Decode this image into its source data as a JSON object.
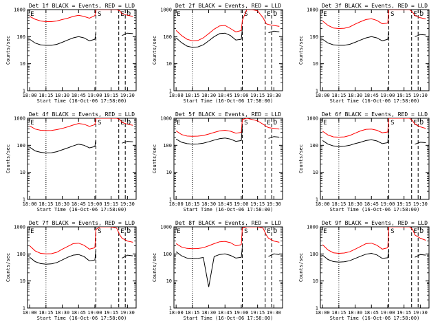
{
  "figure": {
    "y_scale": "log",
    "ylim": [
      1,
      1000
    ],
    "x_tick_labels": [
      "18:00",
      "18:15",
      "18:30",
      "18:45",
      "19:00",
      "19:15",
      "19:30"
    ],
    "y_tick_labels": [
      "1",
      "10",
      "100",
      "1000"
    ],
    "xlabel": "Start Time (16-Oct-06 17:58:00)",
    "ylabel": "Counts/sec",
    "dotted_line_at": "18:15",
    "dashed_lines_at": [
      "19:01",
      "19:22",
      "19:28"
    ],
    "markers": [
      {
        "text": "E",
        "at": "18:00"
      },
      {
        "text": "S",
        "at": "19:02"
      },
      {
        "text": "E",
        "at": "19:23"
      },
      {
        "text": "D",
        "at": "19:29"
      }
    ],
    "colors": {
      "events": "#000000",
      "lld": "#ff0000",
      "axes": "#000000"
    }
  },
  "chart_data": [
    {
      "type": "line",
      "title": "Det 1f BLACK = Events, RED = LLD",
      "x": [
        "18:00",
        "18:05",
        "18:10",
        "18:15",
        "18:20",
        "18:25",
        "18:30",
        "18:35",
        "18:40",
        "18:45",
        "18:50",
        "18:55",
        "19:00",
        "19:01",
        "19:05",
        "19:10",
        "19:15",
        "19:20",
        "19:23",
        "19:25",
        "19:30",
        "19:35"
      ],
      "series": [
        {
          "name": "LLD",
          "color": "#ff0000",
          "values": [
            560,
            440,
            380,
            360,
            360,
            380,
            430,
            480,
            560,
            620,
            560,
            480,
            600,
            1000,
            1000,
            1000,
            1000,
            1000,
            900,
            700,
            620,
            560
          ]
        },
        {
          "name": "Events",
          "color": "#000000",
          "values": [
            80,
            58,
            50,
            48,
            48,
            52,
            62,
            75,
            90,
            100,
            90,
            70,
            80,
            140,
            null,
            null,
            null,
            null,
            null,
            110,
            135,
            130
          ]
        }
      ]
    },
    {
      "type": "line",
      "title": "Det 2f BLACK = Events, RED = LLD",
      "x": [
        "18:00",
        "18:05",
        "18:10",
        "18:15",
        "18:20",
        "18:25",
        "18:30",
        "18:35",
        "18:40",
        "18:45",
        "18:50",
        "18:55",
        "19:00",
        "19:01",
        "19:05",
        "19:10",
        "19:15",
        "19:20",
        "19:23",
        "19:25",
        "19:30",
        "19:35"
      ],
      "series": [
        {
          "name": "LLD",
          "color": "#ff0000",
          "values": [
            170,
            110,
            80,
            70,
            72,
            90,
            130,
            190,
            250,
            260,
            200,
            150,
            170,
            400,
            1000,
            1000,
            900,
            500,
            300,
            280,
            260,
            240
          ]
        },
        {
          "name": "Events",
          "color": "#000000",
          "values": [
            90,
            60,
            45,
            40,
            42,
            50,
            70,
            100,
            130,
            135,
            110,
            75,
            80,
            200,
            null,
            null,
            null,
            null,
            null,
            140,
            160,
            150
          ]
        }
      ]
    },
    {
      "type": "line",
      "title": "Det 3f BLACK = Events, RED = LLD",
      "x": [
        "18:00",
        "18:05",
        "18:10",
        "18:15",
        "18:20",
        "18:25",
        "18:30",
        "18:35",
        "18:40",
        "18:45",
        "18:50",
        "18:55",
        "19:00",
        "19:01",
        "19:05",
        "19:10",
        "19:15",
        "19:20",
        "19:23",
        "19:25",
        "19:30",
        "19:35"
      ],
      "series": [
        {
          "name": "LLD",
          "color": "#ff0000",
          "values": [
            380,
            260,
            210,
            200,
            205,
            230,
            290,
            360,
            430,
            460,
            400,
            300,
            320,
            1000,
            1000,
            1000,
            1000,
            1000,
            800,
            600,
            500,
            450
          ]
        },
        {
          "name": "Events",
          "color": "#000000",
          "values": [
            80,
            58,
            50,
            48,
            48,
            52,
            62,
            75,
            90,
            100,
            90,
            70,
            80,
            160,
            null,
            null,
            null,
            null,
            null,
            100,
            120,
            115
          ]
        }
      ]
    },
    {
      "type": "line",
      "title": "Det 4f BLACK = Events, RED = LLD",
      "x": [
        "18:00",
        "18:05",
        "18:10",
        "18:15",
        "18:20",
        "18:25",
        "18:30",
        "18:35",
        "18:40",
        "18:45",
        "18:50",
        "18:55",
        "19:00",
        "19:01",
        "19:05",
        "19:10",
        "19:15",
        "19:20",
        "19:23",
        "19:25",
        "19:30",
        "19:35"
      ],
      "series": [
        {
          "name": "LLD",
          "color": "#ff0000",
          "values": [
            520,
            400,
            360,
            350,
            355,
            380,
            420,
            480,
            560,
            640,
            600,
            500,
            580,
            1000,
            1000,
            1000,
            1000,
            1000,
            900,
            700,
            600,
            550
          ]
        },
        {
          "name": "Events",
          "color": "#000000",
          "values": [
            85,
            62,
            55,
            52,
            53,
            58,
            68,
            80,
            95,
            110,
            100,
            80,
            90,
            160,
            null,
            null,
            null,
            null,
            null,
            120,
            140,
            135
          ]
        }
      ]
    },
    {
      "type": "line",
      "title": "Det 5f BLACK = Events, RED = LLD",
      "x": [
        "18:00",
        "18:05",
        "18:10",
        "18:15",
        "18:20",
        "18:25",
        "18:30",
        "18:35",
        "18:40",
        "18:45",
        "18:50",
        "18:55",
        "19:00",
        "19:01",
        "19:05",
        "19:10",
        "19:15",
        "19:20",
        "19:23",
        "19:25",
        "19:30",
        "19:35"
      ],
      "series": [
        {
          "name": "LLD",
          "color": "#ff0000",
          "values": [
            340,
            250,
            220,
            215,
            218,
            230,
            260,
            300,
            340,
            360,
            330,
            280,
            300,
            900,
            1000,
            900,
            800,
            600,
            500,
            450,
            420,
            400
          ]
        },
        {
          "name": "Events",
          "color": "#000000",
          "values": [
            170,
            130,
            115,
            110,
            112,
            120,
            135,
            155,
            175,
            185,
            170,
            140,
            150,
            500,
            null,
            null,
            null,
            null,
            null,
            180,
            210,
            200
          ]
        }
      ]
    },
    {
      "type": "line",
      "title": "Det 6f BLACK = Events, RED = LLD",
      "x": [
        "18:00",
        "18:05",
        "18:10",
        "18:15",
        "18:20",
        "18:25",
        "18:30",
        "18:35",
        "18:40",
        "18:45",
        "18:50",
        "18:55",
        "19:00",
        "19:01",
        "19:05",
        "19:10",
        "19:15",
        "19:20",
        "19:23",
        "19:25",
        "19:30",
        "19:35"
      ],
      "series": [
        {
          "name": "LLD",
          "color": "#ff0000",
          "values": [
            330,
            240,
            205,
            200,
            205,
            230,
            280,
            340,
            390,
            400,
            360,
            290,
            310,
            1000,
            1000,
            1000,
            1000,
            1000,
            800,
            600,
            480,
            420
          ]
        },
        {
          "name": "Events",
          "color": "#000000",
          "values": [
            150,
            110,
            95,
            90,
            92,
            100,
            115,
            130,
            150,
            160,
            145,
            115,
            125,
            400,
            null,
            null,
            null,
            null,
            null,
            110,
            130,
            125
          ]
        }
      ]
    },
    {
      "type": "line",
      "title": "Det 7f BLACK = Events, RED = LLD",
      "x": [
        "18:00",
        "18:05",
        "18:10",
        "18:15",
        "18:20",
        "18:25",
        "18:30",
        "18:35",
        "18:40",
        "18:45",
        "18:50",
        "18:55",
        "19:00",
        "19:01",
        "19:05",
        "19:10",
        "19:15",
        "19:20",
        "19:23",
        "19:25",
        "19:30",
        "19:35"
      ],
      "series": [
        {
          "name": "LLD",
          "color": "#ff0000",
          "values": [
            200,
            130,
            105,
            100,
            102,
            115,
            150,
            190,
            240,
            250,
            210,
            150,
            170,
            800,
            1000,
            1000,
            1000,
            900,
            500,
            380,
            300,
            270
          ]
        },
        {
          "name": "Events",
          "color": "#000000",
          "values": [
            75,
            52,
            44,
            42,
            43,
            48,
            60,
            75,
            90,
            95,
            80,
            55,
            60,
            140,
            null,
            null,
            null,
            null,
            null,
            70,
            90,
            85
          ]
        }
      ]
    },
    {
      "type": "line",
      "title": "Det 8f BLACK = Events, RED = LLD",
      "x": [
        "18:00",
        "18:05",
        "18:10",
        "18:15",
        "18:20",
        "18:25",
        "18:30",
        "18:35",
        "18:40",
        "18:45",
        "18:50",
        "18:55",
        "19:00",
        "19:01",
        "19:05",
        "19:10",
        "19:15",
        "19:20",
        "19:23",
        "19:25",
        "19:30",
        "19:35"
      ],
      "series": [
        {
          "name": "LLD",
          "color": "#ff0000",
          "values": [
            240,
            180,
            160,
            155,
            158,
            170,
            200,
            240,
            280,
            290,
            260,
            200,
            220,
            900,
            1000,
            1000,
            1000,
            900,
            500,
            380,
            300,
            270
          ]
        },
        {
          "name": "Events",
          "color": "#000000",
          "values": [
            120,
            85,
            70,
            66,
            68,
            74,
            6,
            80,
            95,
            100,
            88,
            70,
            75,
            180,
            null,
            null,
            null,
            null,
            null,
            80,
            100,
            95
          ]
        }
      ]
    },
    {
      "type": "line",
      "title": "Det 9f BLACK = Events, RED = LLD",
      "x": [
        "18:00",
        "18:05",
        "18:10",
        "18:15",
        "18:20",
        "18:25",
        "18:30",
        "18:35",
        "18:40",
        "18:45",
        "18:50",
        "18:55",
        "19:00",
        "19:01",
        "19:05",
        "19:10",
        "19:15",
        "19:20",
        "19:23",
        "19:25",
        "19:30",
        "19:35"
      ],
      "series": [
        {
          "name": "LLD",
          "color": "#ff0000",
          "values": [
            220,
            140,
            110,
            105,
            108,
            120,
            150,
            190,
            240,
            250,
            210,
            150,
            170,
            1000,
            1000,
            1000,
            1000,
            1000,
            800,
            500,
            380,
            320
          ]
        },
        {
          "name": "Events",
          "color": "#000000",
          "values": [
            90,
            62,
            52,
            50,
            51,
            56,
            68,
            82,
            98,
            105,
            92,
            68,
            72,
            150,
            null,
            null,
            null,
            null,
            null,
            75,
            95,
            90
          ]
        }
      ]
    }
  ]
}
